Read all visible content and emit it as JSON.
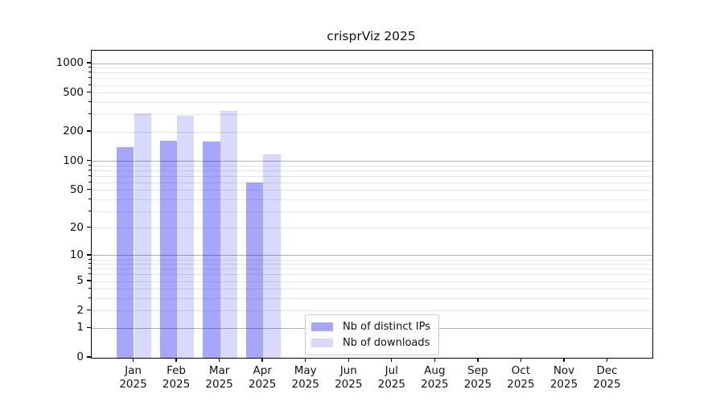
{
  "title": "crisprViz 2025",
  "chart_data": {
    "type": "bar",
    "title": "crisprViz 2025",
    "scale": "log1p (symlog-like: y = log10(1+v))",
    "grid": true,
    "xlabel": "",
    "ylabel": "",
    "categories": [
      "Jan 2025",
      "Feb 2025",
      "Mar 2025",
      "Apr 2025",
      "May 2025",
      "Jun 2025",
      "Jul 2025",
      "Aug 2025",
      "Sep 2025",
      "Oct 2025",
      "Nov 2025",
      "Dec 2025"
    ],
    "series": [
      {
        "name": "Nb of distinct IPs",
        "color": "rgba(0,0,240,0.35)",
        "values": [
          140,
          163,
          158,
          60,
          0,
          0,
          0,
          0,
          0,
          0,
          0,
          0
        ]
      },
      {
        "name": "Nb of downloads",
        "color": "rgba(0,0,240,0.15)",
        "values": [
          307,
          292,
          325,
          118,
          0,
          0,
          0,
          0,
          0,
          0,
          0,
          0
        ]
      }
    ],
    "yticks": [
      0,
      1,
      2,
      5,
      10,
      20,
      50,
      100,
      200,
      500,
      1000
    ],
    "ylim": [
      0,
      1360
    ],
    "major_grid_values": [
      1,
      10,
      100,
      1000
    ],
    "minor_grid_values": [
      2,
      3,
      4,
      5,
      6,
      7,
      8,
      9,
      20,
      30,
      40,
      50,
      60,
      70,
      80,
      90,
      200,
      300,
      400,
      500,
      600,
      700,
      800,
      900
    ],
    "colors": {
      "major_grid": "#b0b0b0",
      "minor_grid": "#e6e6e6",
      "axis": "#000000",
      "text": "#111111"
    },
    "legend": {
      "position": "lower center",
      "entries": [
        "Nb of distinct IPs",
        "Nb of downloads"
      ]
    }
  }
}
